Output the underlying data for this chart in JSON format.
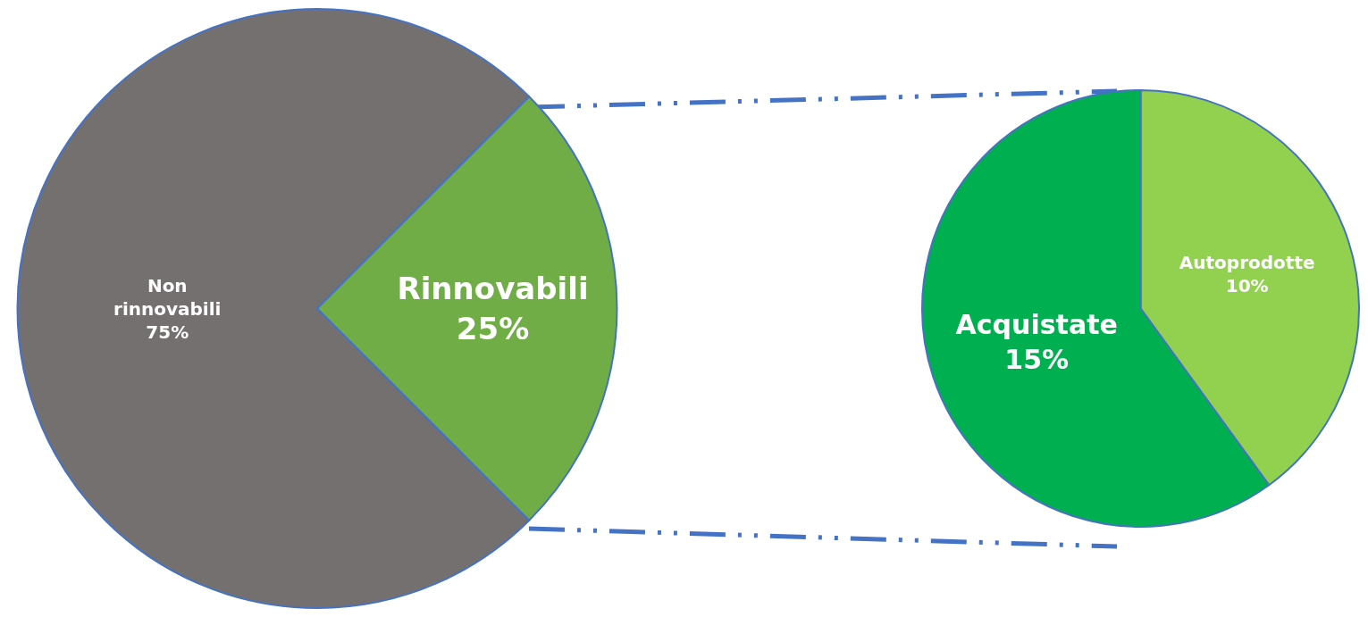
{
  "chart_data": [
    {
      "type": "pie",
      "categories": [
        "Non rinnovabili",
        "Rinnovabili"
      ],
      "values": [
        75,
        25
      ],
      "colors": [
        "#757070",
        "#70ad47"
      ],
      "value_labels": [
        "75%",
        "25%"
      ]
    },
    {
      "type": "pie",
      "categories": [
        "Autoprodotte",
        "Acquistate"
      ],
      "values": [
        10,
        15
      ],
      "colors": [
        "#92d050",
        "#00b050"
      ],
      "value_labels": [
        "10%",
        "15%"
      ]
    }
  ]
}
